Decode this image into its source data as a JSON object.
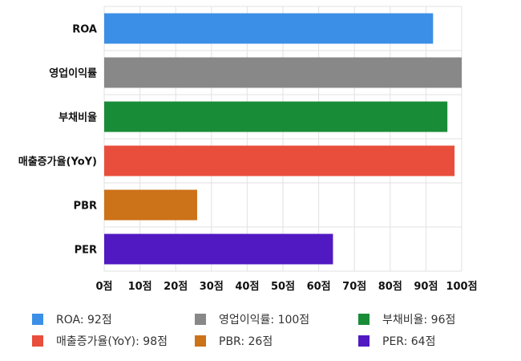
{
  "chart_data": {
    "type": "bar",
    "orientation": "horizontal",
    "categories": [
      "ROA",
      "영업이익률",
      "부채비율",
      "매출증가율(YoY)",
      "PBR",
      "PER"
    ],
    "values": [
      92,
      100,
      96,
      98,
      26,
      64
    ],
    "colors": [
      "#3b8fe6",
      "#888888",
      "#198c37",
      "#e84e3b",
      "#cc7219",
      "#5119c2"
    ],
    "xlim": [
      0,
      100
    ],
    "x_ticks": [
      0,
      10,
      20,
      30,
      40,
      50,
      60,
      70,
      80,
      90,
      100
    ],
    "x_tick_labels": [
      "0점",
      "10점",
      "20점",
      "30점",
      "40점",
      "50점",
      "60점",
      "70점",
      "80점",
      "90점",
      "100점"
    ],
    "grid": true,
    "legend_position": "bottom",
    "legend": [
      {
        "label": "ROA: 92점",
        "color": "#3b8fe6"
      },
      {
        "label": "영업이익률: 100점",
        "color": "#888888"
      },
      {
        "label": "부채비율: 96점",
        "color": "#198c37"
      },
      {
        "label": "매출증가율(YoY): 98점",
        "color": "#e84e3b"
      },
      {
        "label": "PBR: 26점",
        "color": "#cc7219"
      },
      {
        "label": "PER: 64점",
        "color": "#5119c2"
      }
    ]
  }
}
